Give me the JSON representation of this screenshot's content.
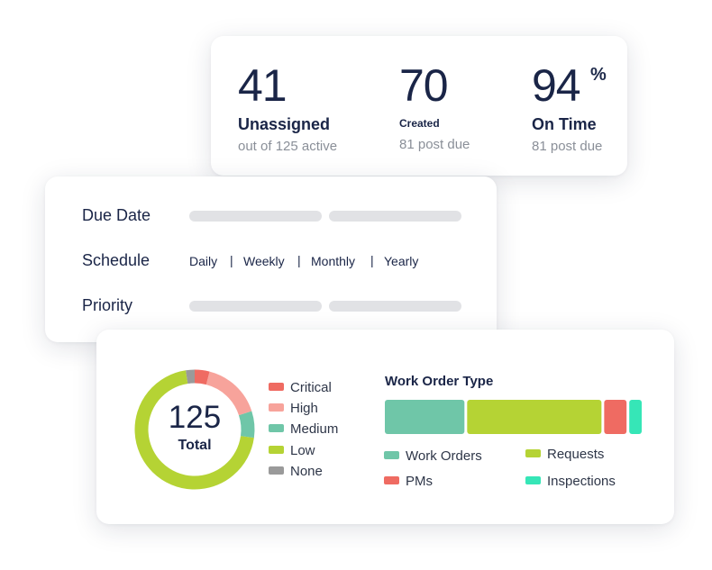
{
  "stats": [
    {
      "value": "41",
      "label": "Unassigned",
      "sub": "out of 125 active"
    },
    {
      "value": "70",
      "label": "Created",
      "sub": "81 post due"
    },
    {
      "value": "94",
      "suffix": "%",
      "label": "On Time",
      "sub": "81 post due"
    }
  ],
  "filters": {
    "due_date_label": "Due Date",
    "schedule_label": "Schedule",
    "priority_label": "Priority",
    "schedule_options": [
      "Daily",
      "Weekly",
      "Monthly",
      "Yearly"
    ],
    "separator": "|"
  },
  "priority_chart": {
    "center_value": "125",
    "center_label": "Total",
    "legend": [
      {
        "label": "Critical",
        "color": "#ef6b62"
      },
      {
        "label": "High",
        "color": "#f7a39b"
      },
      {
        "label": "Medium",
        "color": "#6fc6a8"
      },
      {
        "label": "Low",
        "color": "#b5d334"
      },
      {
        "label": "None",
        "color": "#9a9a9a"
      }
    ]
  },
  "work_order_type": {
    "title": "Work Order Type",
    "legend": [
      {
        "label": "Work Orders",
        "color": "#6fc6a8"
      },
      {
        "label": "Requests",
        "color": "#b5d334"
      },
      {
        "label": "PMs",
        "color": "#ef6b62"
      },
      {
        "label": "Inspections",
        "color": "#36e6b7"
      }
    ]
  },
  "chart_data": [
    {
      "type": "pie",
      "categories": [
        "Critical",
        "High",
        "Medium",
        "Low",
        "None"
      ],
      "values": [
        5,
        20,
        9,
        88,
        3
      ],
      "colors": [
        "#ef6b62",
        "#f7a39b",
        "#6fc6a8",
        "#b5d334",
        "#9a9a9a"
      ]
    },
    {
      "type": "bar",
      "title": "Work Order Type",
      "categories": [
        "Work Orders",
        "Requests",
        "PMs",
        "Inspections"
      ],
      "values": [
        32,
        54,
        9,
        5
      ],
      "colors": [
        "#6fc6a8",
        "#b5d334",
        "#ef6b62",
        "#36e6b7"
      ]
    }
  ]
}
